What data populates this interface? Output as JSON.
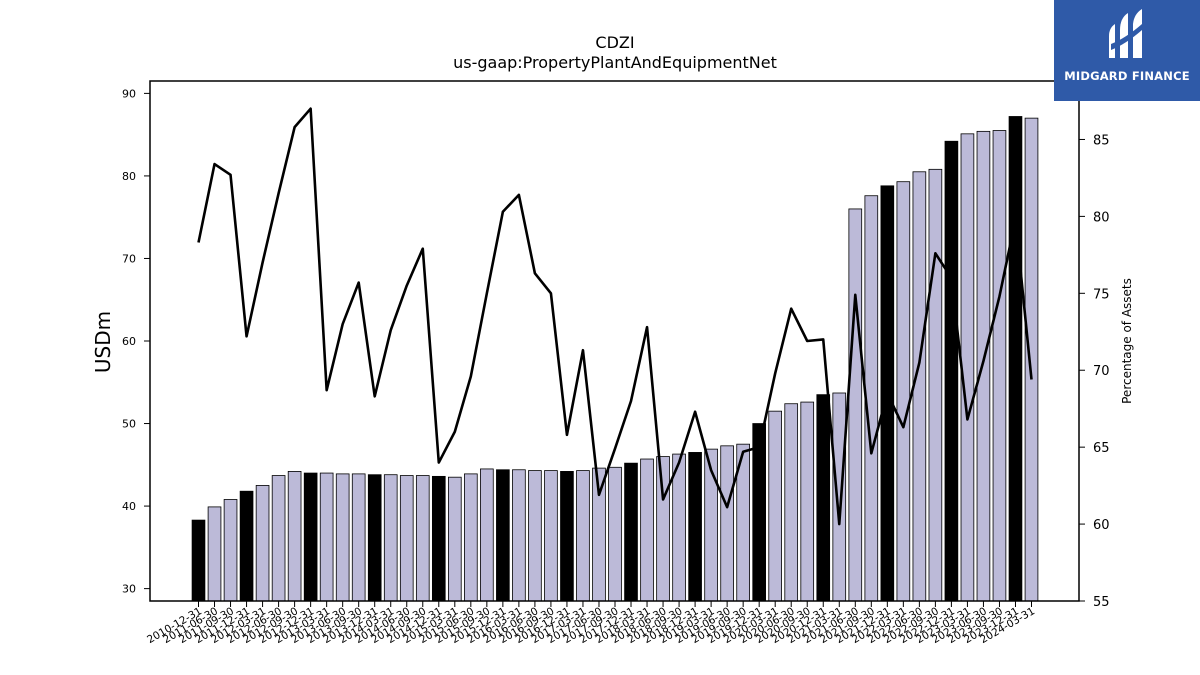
{
  "header": {
    "ticker": "CDZI",
    "metric": "us-gaap:PropertyPlantAndEquipmentNet"
  },
  "logo": {
    "text": "MIDGARD FINANCE",
    "icon": "midgard-logo-icon",
    "color": "#2f5aa8"
  },
  "chart_data": {
    "type": "bar",
    "ylabel": "USDm",
    "y2label": "Percentage of Assets",
    "ylim": [
      28.5,
      91.5
    ],
    "y2lim": [
      55,
      88.8
    ],
    "yticks": [
      30,
      40,
      50,
      60,
      70,
      80,
      90
    ],
    "y2ticks": [
      55,
      60,
      65,
      70,
      75,
      80,
      85
    ],
    "categories": [
      "2010-12-31",
      "2011-06-30",
      "2011-09-30",
      "2011-12-31",
      "2012-03-31",
      "2012-06-30",
      "2012-09-30",
      "2012-12-31",
      "2013-03-31",
      "2013-06-30",
      "2013-09-30",
      "2013-12-31",
      "2014-03-31",
      "2014-06-30",
      "2014-09-30",
      "2014-12-31",
      "2015-03-31",
      "2015-06-30",
      "2015-09-30",
      "2015-12-31",
      "2016-03-31",
      "2016-06-30",
      "2016-09-30",
      "2016-12-31",
      "2017-03-31",
      "2017-06-30",
      "2017-09-30",
      "2017-12-31",
      "2018-03-31",
      "2018-06-30",
      "2018-09-30",
      "2018-12-31",
      "2019-03-31",
      "2019-06-30",
      "2019-09-30",
      "2019-12-31",
      "2020-03-31",
      "2020-06-30",
      "2020-09-30",
      "2020-12-31",
      "2021-03-31",
      "2021-06-30",
      "2021-09-30",
      "2021-12-31",
      "2022-03-31",
      "2022-06-30",
      "2022-09-30",
      "2022-12-31",
      "2023-03-31",
      "2023-06-30",
      "2023-09-30",
      "2023-12-31",
      "2024-03-31"
    ],
    "series": [
      {
        "values": [
          38.3,
          39.9,
          40.8,
          41.8,
          42.5,
          43.7,
          44.2,
          44.0,
          44.0,
          43.9,
          43.9,
          43.8,
          43.8,
          43.7,
          43.7,
          43.6,
          43.5,
          43.9,
          44.5,
          44.4,
          44.4,
          44.3,
          44.3,
          44.2,
          44.3,
          44.6,
          44.7,
          45.2,
          45.7,
          46.0,
          46.3,
          46.5,
          46.9,
          47.3,
          47.5,
          50.0,
          51.5,
          52.4,
          52.6,
          53.5,
          53.7,
          76.0,
          77.6,
          78.8,
          79.3,
          80.5,
          80.8,
          84.2,
          85.1,
          85.4,
          85.5,
          87.2,
          87.0
        ],
        "year_end": [
          true,
          false,
          false,
          true,
          false,
          false,
          false,
          true,
          false,
          false,
          false,
          true,
          false,
          false,
          false,
          true,
          false,
          false,
          false,
          true,
          false,
          false,
          false,
          true,
          false,
          false,
          false,
          true,
          false,
          false,
          false,
          true,
          false,
          false,
          false,
          true,
          false,
          false,
          false,
          true,
          false,
          false,
          false,
          true,
          false,
          false,
          false,
          true,
          false,
          false,
          false,
          true,
          false
        ]
      },
      {
        "axis": "right",
        "values": [
          78.3,
          83.4,
          82.7,
          72.2,
          77.0,
          81.5,
          85.8,
          87.0,
          68.7,
          73.0,
          75.7,
          68.3,
          72.6,
          75.5,
          77.9,
          64.0,
          66.0,
          69.6,
          75.0,
          80.3,
          81.4,
          76.3,
          75.0,
          65.8,
          71.3,
          61.9,
          64.9,
          68.0,
          72.8,
          61.6,
          64.0,
          67.3,
          63.5,
          61.1,
          64.7,
          65.0,
          69.8,
          74.0,
          71.9,
          72.0,
          60.0,
          74.9,
          64.6,
          68.5,
          66.3,
          70.5,
          77.6,
          76.0,
          66.8,
          70.6,
          74.8,
          79.8,
          69.4
        ]
      }
    ],
    "colors": {
      "bar": "#bcbad8",
      "bar_year_end": "#000000",
      "line": "#000000"
    }
  }
}
